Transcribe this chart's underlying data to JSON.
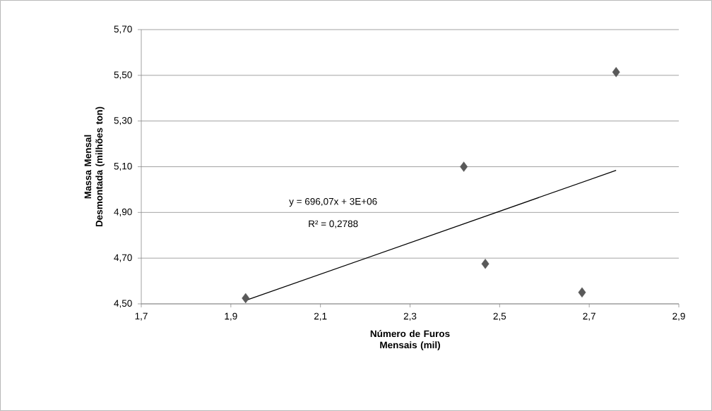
{
  "chart_data": {
    "type": "scatter",
    "xlabel": "Número de Furos Mensais (mil)",
    "ylabel": "Massa Mensal Desmontada (milhões ton)",
    "x": [
      1.933,
      2.42,
      2.468,
      2.684,
      2.76
    ],
    "series": [
      {
        "color": "#595959",
        "marker": "diamond",
        "values": [
          4.525,
          5.1,
          4.675,
          4.55,
          5.514
        ]
      },
      {
        "type": "line",
        "color": "#000000",
        "marker": "none",
        "x": [
          1.933,
          2.76
        ],
        "values": [
          4.515,
          5.084
        ]
      }
    ],
    "annotations": [
      "y = 696,07x + 3E+06",
      "R² = 0,2788"
    ],
    "xlim": [
      1.7,
      2.9
    ],
    "ylim": [
      4.5,
      5.7
    ],
    "xticks": [
      {
        "value": 1.7,
        "label": "1,7"
      },
      {
        "value": 1.9,
        "label": "1,9"
      },
      {
        "value": 2.1,
        "label": "2,1"
      },
      {
        "value": 2.3,
        "label": "2,3"
      },
      {
        "value": 2.5,
        "label": "2,5"
      },
      {
        "value": 2.7,
        "label": "2,7"
      },
      {
        "value": 2.9,
        "label": "2,9"
      }
    ],
    "yticks": [
      {
        "value": 4.5,
        "label": "4,50"
      },
      {
        "value": 4.7,
        "label": "4,70"
      },
      {
        "value": 4.9,
        "label": "4,90"
      },
      {
        "value": 5.1,
        "label": "5,10"
      },
      {
        "value": 5.3,
        "label": "5,30"
      },
      {
        "value": 5.5,
        "label": "5,50"
      },
      {
        "value": 5.7,
        "label": "5,70"
      }
    ],
    "grid": "y"
  }
}
